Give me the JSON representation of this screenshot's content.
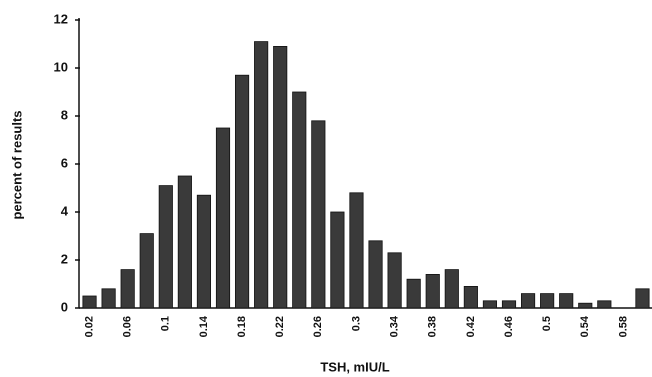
{
  "chart_data": {
    "type": "bar",
    "x_label": "TSH, mIU/L",
    "y_label": "percent of results",
    "categories": [
      "0.02",
      null,
      "0.06",
      null,
      "0.1",
      null,
      "0.14",
      null,
      "0.18",
      null,
      "0.22",
      null,
      "0.26",
      null,
      "0.3",
      null,
      "0.34",
      null,
      "0.38",
      null,
      "0.42",
      null,
      "0.46",
      null,
      "0.5",
      null,
      "0.54",
      null,
      "0.58",
      null
    ],
    "values": [
      0.5,
      0.8,
      1.6,
      3.1,
      5.1,
      5.5,
      4.7,
      7.5,
      9.7,
      11.1,
      10.9,
      9.0,
      7.8,
      4.0,
      4.8,
      2.8,
      2.3,
      1.2,
      1.4,
      1.6,
      0.9,
      0.3,
      0.3,
      0.6,
      0.6,
      0.6,
      0.2,
      0.3,
      0,
      0.8
    ],
    "color": "#3a3a3a",
    "ylim": [
      0,
      12
    ],
    "yticks": [
      0,
      2,
      4,
      6,
      8,
      10,
      12
    ],
    "grid": false
  }
}
